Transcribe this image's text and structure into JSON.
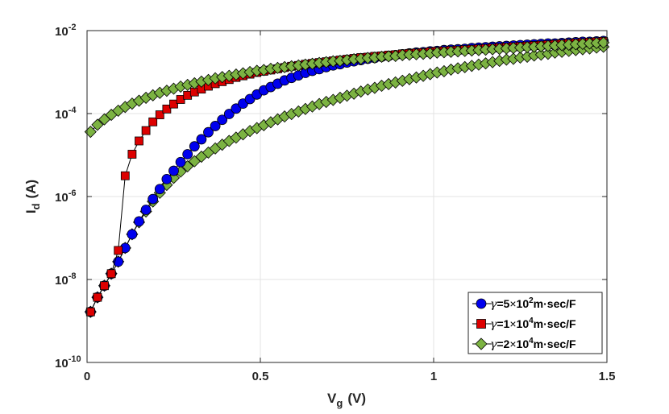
{
  "chart_data": {
    "type": "line",
    "title": "",
    "xlabel": {
      "main": "V",
      "sub": "g",
      "unit": "(V)"
    },
    "ylabel": {
      "main": "I",
      "sub": "d",
      "unit": "(A)"
    },
    "xlim": [
      0,
      1.5
    ],
    "ylim_log10": [
      -10,
      -2
    ],
    "yscale": "log",
    "grid": true,
    "legend_position": "bottom-right",
    "x_ticks": [
      "0",
      "0.5",
      "1",
      "1.5"
    ],
    "x_tick_values": [
      0,
      0.5,
      1,
      1.5
    ],
    "y_ticks": [
      {
        "base": "10",
        "exp": "-10",
        "value": -10
      },
      {
        "base": "10",
        "exp": "-8",
        "value": -8
      },
      {
        "base": "10",
        "exp": "-6",
        "value": -6
      },
      {
        "base": "10",
        "exp": "-4",
        "value": -4
      },
      {
        "base": "10",
        "exp": "-2",
        "value": -2
      }
    ],
    "x": [
      0.01,
      0.03,
      0.05,
      0.07,
      0.09,
      0.11,
      0.13,
      0.15,
      0.17,
      0.19,
      0.21,
      0.23,
      0.25,
      0.27,
      0.29,
      0.31,
      0.33,
      0.35,
      0.37,
      0.39,
      0.41,
      0.43,
      0.45,
      0.47,
      0.49,
      0.51,
      0.53,
      0.55,
      0.57,
      0.59,
      0.61,
      0.63,
      0.65,
      0.67,
      0.69,
      0.71,
      0.73,
      0.75,
      0.77,
      0.79,
      0.81,
      0.83,
      0.85,
      0.87,
      0.89,
      0.91,
      0.93,
      0.95,
      0.97,
      0.99,
      1.01,
      1.03,
      1.05,
      1.07,
      1.09,
      1.11,
      1.13,
      1.15,
      1.17,
      1.19,
      1.21,
      1.23,
      1.25,
      1.27,
      1.29,
      1.31,
      1.33,
      1.35,
      1.37,
      1.39,
      1.41,
      1.43,
      1.45,
      1.47,
      1.49
    ],
    "series": [
      {
        "name": "gamma-5e2",
        "legend_label": {
          "greek": "γ",
          "coef": "=5",
          "times": "×",
          "base": "10",
          "exp": "2",
          "unit": "m·sec/F"
        },
        "color": "#0000ee",
        "marker": "circle",
        "log10_values": [
          -8.78,
          -8.43,
          -8.15,
          -7.86,
          -7.57,
          -7.24,
          -6.91,
          -6.6,
          -6.32,
          -6.06,
          -5.82,
          -5.58,
          -5.38,
          -5.17,
          -4.98,
          -4.79,
          -4.62,
          -4.45,
          -4.3,
          -4.15,
          -4.01,
          -3.88,
          -3.76,
          -3.65,
          -3.54,
          -3.44,
          -3.36,
          -3.28,
          -3.2,
          -3.14,
          -3.08,
          -3.02,
          -2.97,
          -2.93,
          -2.88,
          -2.84,
          -2.81,
          -2.77,
          -2.74,
          -2.71,
          -2.68,
          -2.66,
          -2.63,
          -2.61,
          -2.59,
          -2.57,
          -2.55,
          -2.53,
          -2.52,
          -2.5,
          -2.49,
          -2.47,
          -2.46,
          -2.45,
          -2.44,
          -2.42,
          -2.41,
          -2.4,
          -2.39,
          -2.38,
          -2.37,
          -2.36,
          -2.35,
          -2.34,
          -2.33,
          -2.32,
          -2.31,
          -2.31,
          -2.3,
          -2.29,
          -2.28,
          -2.27,
          -2.27,
          -2.26,
          -2.25
        ]
      },
      {
        "name": "gamma-1e4",
        "legend_label": {
          "greek": "γ",
          "coef": "=1",
          "times": "×",
          "base": "10",
          "exp": "4",
          "unit": "m·sec/F"
        },
        "color": "#dd0000",
        "marker": "square",
        "log10_values": [
          -8.78,
          -8.43,
          -8.15,
          -7.86,
          -7.3,
          -5.5,
          -4.98,
          -4.66,
          -4.41,
          -4.2,
          -4.03,
          -3.89,
          -3.77,
          -3.66,
          -3.56,
          -3.48,
          -3.41,
          -3.34,
          -3.28,
          -3.23,
          -3.18,
          -3.13,
          -3.09,
          -3.05,
          -3.01,
          -2.98,
          -2.95,
          -2.92,
          -2.89,
          -2.86,
          -2.84,
          -2.81,
          -2.79,
          -2.77,
          -2.75,
          -2.73,
          -2.71,
          -2.69,
          -2.67,
          -2.65,
          -2.64,
          -2.62,
          -2.61,
          -2.59,
          -2.58,
          -2.56,
          -2.55,
          -2.54,
          -2.53,
          -2.51,
          -2.5,
          -2.49,
          -2.48,
          -2.47,
          -2.46,
          -2.45,
          -2.44,
          -2.43,
          -2.42,
          -2.41,
          -2.4,
          -2.39,
          -2.38,
          -2.37,
          -2.36,
          -2.35,
          -2.34,
          -2.33,
          -2.32,
          -2.31,
          -2.3,
          -2.29,
          -2.28,
          -2.27,
          -2.26
        ]
      },
      {
        "name": "gamma-2e4",
        "legend_label": {
          "greek": "γ",
          "coef": "=2",
          "times": "×",
          "base": "10",
          "exp": "4",
          "unit": "m·sec/F"
        },
        "color": "#7cb342",
        "marker": "diamond",
        "log10_values": [
          -4.44,
          -4.27,
          -4.14,
          -4.03,
          -3.93,
          -3.84,
          -3.76,
          -3.69,
          -3.62,
          -3.56,
          -3.5,
          -3.45,
          -3.4,
          -3.35,
          -3.31,
          -3.27,
          -3.23,
          -3.19,
          -3.15,
          -3.12,
          -3.09,
          -3.06,
          -3.03,
          -3.0,
          -2.97,
          -2.95,
          -2.92,
          -2.9,
          -2.88,
          -2.86,
          -2.84,
          -2.82,
          -2.8,
          -2.78,
          -2.76,
          -2.74,
          -2.73,
          -2.71,
          -2.69,
          -2.68,
          -2.66,
          -2.65,
          -2.63,
          -2.62,
          -2.61,
          -2.59,
          -2.58,
          -2.57,
          -2.56,
          -2.55,
          -2.53,
          -2.52,
          -2.51,
          -2.5,
          -2.49,
          -2.48,
          -2.47,
          -2.46,
          -2.45,
          -2.44,
          -2.43,
          -2.42,
          -2.41,
          -2.4,
          -2.39,
          -2.38,
          -2.37,
          -2.36,
          -2.35,
          -2.34,
          -2.33,
          -2.32,
          -2.31,
          -2.3,
          -2.29
        ],
        "low_branch_log10": [
          -8.78,
          -8.43,
          -8.15,
          -7.86,
          -7.57,
          -7.24,
          -6.91,
          -6.62,
          -6.36,
          -6.12,
          -5.91,
          -5.72,
          -5.55,
          -5.4,
          -5.27,
          -5.15,
          -5.04,
          -4.94,
          -4.84,
          -4.75,
          -4.66,
          -4.58,
          -4.5,
          -4.42,
          -4.35,
          -4.28,
          -4.21,
          -4.14,
          -4.07,
          -4.01,
          -3.95,
          -3.89,
          -3.83,
          -3.77,
          -3.72,
          -3.67,
          -3.62,
          -3.57,
          -3.52,
          -3.47,
          -3.42,
          -3.38,
          -3.33,
          -3.29,
          -3.25,
          -3.21,
          -3.17,
          -3.13,
          -3.09,
          -3.05,
          -3.01,
          -2.98,
          -2.94,
          -2.91,
          -2.88,
          -2.85,
          -2.82,
          -2.79,
          -2.76,
          -2.73,
          -2.7,
          -2.68,
          -2.65,
          -2.63,
          -2.6,
          -2.58,
          -2.56,
          -2.53,
          -2.51,
          -2.49,
          -2.47,
          -2.45,
          -2.43,
          -2.41,
          -2.39
        ]
      }
    ]
  },
  "legend": {
    "entries": [
      {
        "greek": "γ",
        "coef": "=5",
        "times": "×",
        "base": "10",
        "exp": "2",
        "unit": "m·sec/F"
      },
      {
        "greek": "γ",
        "coef": "=1",
        "times": "×",
        "base": "10",
        "exp": "4",
        "unit": "m·sec/F"
      },
      {
        "greek": "γ",
        "coef": "=2",
        "times": "×",
        "base": "10",
        "exp": "4",
        "unit": "m·sec/F"
      }
    ]
  }
}
